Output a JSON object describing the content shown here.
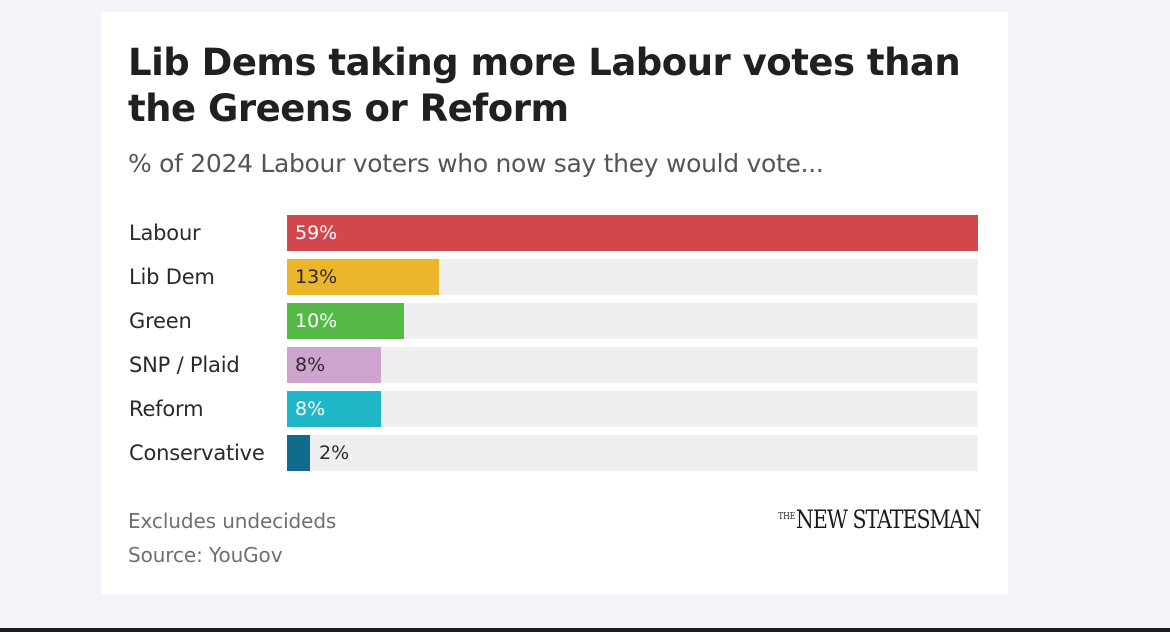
{
  "chart_data": {
    "type": "bar",
    "orientation": "horizontal",
    "title": "Lib Dems taking more Labour votes than the Greens or Reform",
    "subtitle": "% of 2024 Labour voters who now say they would vote...",
    "categories": [
      "Labour",
      "Lib Dem",
      "Green",
      "SNP / Plaid",
      "Reform",
      "Conservative"
    ],
    "values": [
      59,
      13,
      10,
      8,
      8,
      2
    ],
    "value_labels": [
      "59%",
      "13%",
      "10%",
      "8%",
      "8%",
      "2%"
    ],
    "colors": [
      "#d2474c",
      "#ebb62c",
      "#56b947",
      "#cda4ce",
      "#1fb7c8",
      "#106b8c"
    ],
    "label_colors": [
      "#ffffff",
      "#2a2a2a",
      "#ffffff",
      "#2a2a2a",
      "#ffffff",
      "#2a2a2a"
    ],
    "track_color": "#efefef",
    "xlim": [
      0,
      59
    ],
    "grid": false,
    "legend": "none"
  },
  "footer": {
    "note": "Excludes undecideds",
    "source": "Source: YouGov",
    "logo_small": "THE",
    "logo_main": "NEW STATESMAN"
  }
}
